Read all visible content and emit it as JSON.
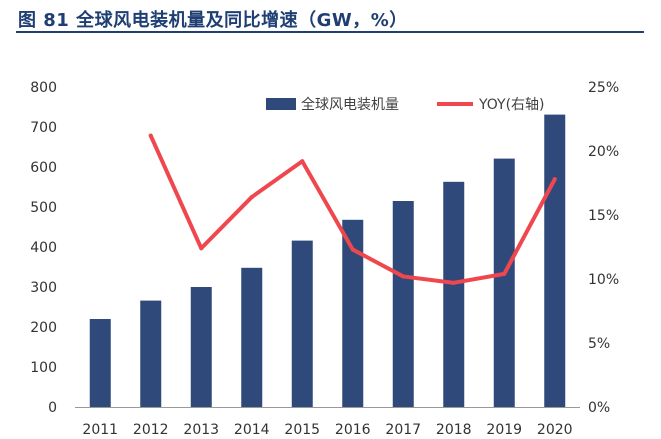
{
  "figure": {
    "title": "图 81 全球风电装机量及同比增速（GW，%）"
  },
  "chart_data": {
    "type": "bar",
    "categories": [
      "2011",
      "2012",
      "2013",
      "2014",
      "2015",
      "2016",
      "2017",
      "2018",
      "2019",
      "2020"
    ],
    "series": [
      {
        "name": "全球风电装机量",
        "type": "bar",
        "axis": "left",
        "values": [
          220,
          266,
          300,
          348,
          416,
          468,
          515,
          563,
          621,
          731
        ]
      },
      {
        "name": "YOY(右轴)",
        "type": "line",
        "axis": "right",
        "values": [
          null,
          21.2,
          12.4,
          16.4,
          19.2,
          12.3,
          10.2,
          9.7,
          10.4,
          17.8
        ]
      }
    ],
    "left_axis": {
      "ylim": [
        0,
        800
      ],
      "ticks": [
        "0",
        "100",
        "200",
        "300",
        "400",
        "500",
        "600",
        "700",
        "800"
      ]
    },
    "right_axis": {
      "ylim": [
        0,
        25
      ],
      "ticks": [
        "0%",
        "5%",
        "10%",
        "15%",
        "20%",
        "25%"
      ]
    },
    "legend": "top-right",
    "grid": false,
    "colors": {
      "bar": "#2f4a7a",
      "line": "#f0474f",
      "title": "#1f3f73"
    }
  }
}
